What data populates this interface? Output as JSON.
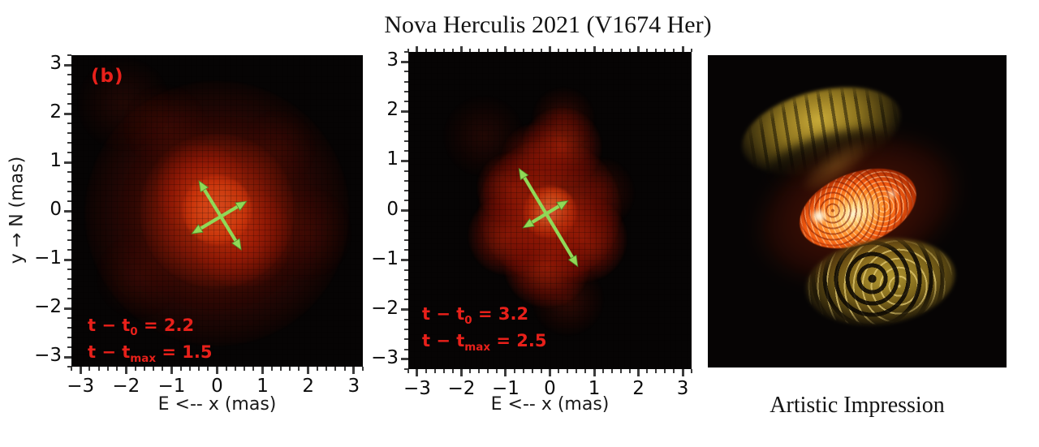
{
  "title": "Nova Herculis 2021 (V1674 Her)",
  "caption_right": "Artistic Impression",
  "axis": {
    "x_label": "E <-- x (mas)",
    "y_label": "y → N (mas)"
  },
  "panels": [
    {
      "label": "(b)",
      "annotations": [
        {
          "pre": "t − t",
          "sub": "0",
          "post": " = 2.2"
        },
        {
          "pre": "t − t",
          "sub": "max",
          "post": " = 1.5"
        }
      ]
    },
    {
      "label": "",
      "annotations": [
        {
          "pre": "t − t",
          "sub": "0",
          "post": " = 3.2"
        },
        {
          "pre": "t − t",
          "sub": "max",
          "post": " = 2.5"
        }
      ]
    }
  ],
  "colors": {
    "annotation_red": "#e8201a",
    "arrow_green": "#90d957",
    "arrow_green_edge": "#4f8f2a",
    "panel_black": "#060404",
    "background": "#ffffff"
  },
  "chart_data": [
    {
      "type": "heatmap",
      "panel": "reconstructed-image-epoch-1",
      "label": "(b)",
      "xlabel": "E <-- x (mas)",
      "ylabel": "y → N (mas)",
      "xlim": [
        -3.2,
        3.2
      ],
      "ylim": [
        -3.2,
        3.2
      ],
      "x_ticks": [
        -3,
        -2,
        -1,
        0,
        1,
        2,
        3
      ],
      "y_ticks": [
        3,
        2,
        1,
        0,
        -1,
        -2,
        -3
      ],
      "minor_tick_step": 0.2,
      "annotations": [
        "t − t0 = 2.2",
        "t − tmax = 1.5"
      ],
      "features": [
        {
          "x": 0.0,
          "y": -0.05,
          "r": 1.45,
          "intensity": 0.3
        },
        {
          "x": 0.0,
          "y": 0.0,
          "r": 0.85,
          "intensity": 0.65
        },
        {
          "x": -0.35,
          "y": 0.45,
          "r": 0.5,
          "intensity": 0.4
        },
        {
          "x": 0.55,
          "y": -0.55,
          "r": 0.55,
          "intensity": 0.35
        },
        {
          "x": 0.0,
          "y": 0.02,
          "r": 0.38,
          "intensity": 1.0
        },
        {
          "x": -2.05,
          "y": 2.2,
          "r": 0.5,
          "intensity": 0.1
        },
        {
          "x": -1.15,
          "y": 1.75,
          "r": 0.45,
          "intensity": 0.1
        },
        {
          "x": 1.95,
          "y": -0.45,
          "r": 0.5,
          "intensity": 0.1
        },
        {
          "x": -1.75,
          "y": -1.35,
          "r": 0.45,
          "intensity": 0.08
        },
        {
          "x": 1.35,
          "y": 1.3,
          "r": 0.4,
          "intensity": 0.07
        }
      ],
      "arrows": [
        {
          "x1": -0.4,
          "y1": 0.62,
          "x2": 0.53,
          "y2": -0.8
        },
        {
          "x1": -0.56,
          "y1": -0.47,
          "x2": 0.65,
          "y2": 0.2
        }
      ]
    },
    {
      "type": "heatmap",
      "panel": "reconstructed-image-epoch-2",
      "label": "",
      "xlabel": "E <-- x (mas)",
      "ylabel": "",
      "xlim": [
        -3.2,
        3.2
      ],
      "ylim": [
        -3.2,
        3.2
      ],
      "x_ticks": [
        -3,
        -2,
        -1,
        0,
        1,
        2,
        3
      ],
      "y_ticks": [
        3,
        2,
        1,
        0,
        -1,
        -2,
        -3
      ],
      "minor_tick_step": 0.2,
      "annotations": [
        "t − t0 = 3.2",
        "t − tmax = 2.5"
      ],
      "features": [
        {
          "x": 0.0,
          "y": 0.0,
          "r": 0.8,
          "intensity": 0.55
        },
        {
          "x": 0.27,
          "y": 1.27,
          "r": 0.45,
          "intensity": 0.42
        },
        {
          "x": -0.3,
          "y": 1.05,
          "r": 0.4,
          "intensity": 0.3
        },
        {
          "x": -0.85,
          "y": 0.45,
          "r": 0.4,
          "intensity": 0.4
        },
        {
          "x": -0.95,
          "y": -0.5,
          "r": 0.45,
          "intensity": 0.42
        },
        {
          "x": -0.07,
          "y": -1.1,
          "r": 0.48,
          "intensity": 0.5
        },
        {
          "x": 0.77,
          "y": -0.57,
          "r": 0.48,
          "intensity": 0.48
        },
        {
          "x": 0.3,
          "y": 1.85,
          "r": 0.35,
          "intensity": 0.18
        },
        {
          "x": 1.1,
          "y": 0.35,
          "r": 0.4,
          "intensity": 0.18
        },
        {
          "x": 0.4,
          "y": -1.8,
          "r": 0.4,
          "intensity": 0.15
        },
        {
          "x": -1.5,
          "y": 1.5,
          "r": 0.45,
          "intensity": 0.1
        },
        {
          "x": 0.0,
          "y": -0.03,
          "r": 0.3,
          "intensity": 1.0
        }
      ],
      "arrows": [
        {
          "x1": -0.7,
          "y1": 0.85,
          "x2": 0.63,
          "y2": -1.13
        },
        {
          "x1": -0.61,
          "y1": -0.35,
          "x2": 0.41,
          "y2": 0.2
        }
      ]
    },
    {
      "type": "image",
      "panel": "artistic-impression",
      "caption": "Artistic Impression"
    }
  ]
}
